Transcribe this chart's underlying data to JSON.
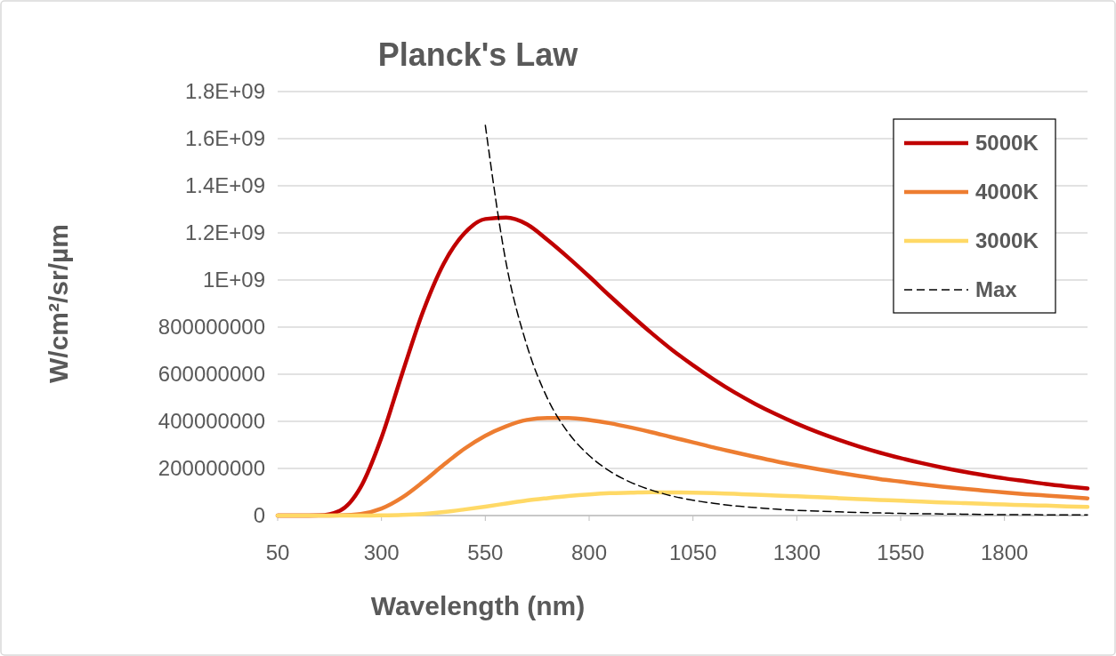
{
  "chart_data": {
    "type": "line",
    "title": "Planck's Law",
    "xlabel": "Wavelength (nm)",
    "ylabel": "W/cm²/sr/µm",
    "x": [
      50,
      100,
      150,
      200,
      250,
      300,
      350,
      400,
      450,
      500,
      550,
      600,
      650,
      700,
      750,
      800,
      850,
      900,
      950,
      1000,
      1050,
      1100,
      1150,
      1200,
      1250,
      1300,
      1350,
      1400,
      1450,
      1500,
      1550,
      1600,
      1650,
      1700,
      1750,
      1800,
      1850,
      1900,
      1950,
      2000
    ],
    "xlim": [
      50,
      2000
    ],
    "xticks": [
      50,
      300,
      550,
      800,
      1050,
      1300,
      1550,
      1800
    ],
    "ylim": [
      0,
      1800000000
    ],
    "yticks": [
      0,
      200000000,
      400000000,
      600000000,
      800000000,
      {
        "value": 1000000000,
        "label": "1E+09"
      },
      {
        "value": 1200000000,
        "label": "1.2E+09"
      },
      {
        "value": 1400000000,
        "label": "1.4E+09"
      },
      {
        "value": 1600000000,
        "label": "1.6E+09"
      },
      {
        "value": 1800000000,
        "label": "1.8E+09"
      }
    ],
    "grid": "y",
    "legend": "top right",
    "series": [
      {
        "name": "5000K",
        "color": "#c00000",
        "values": [
          0,
          0,
          1000000,
          21000000,
          121000000,
          331000000,
          604000000,
          866000000,
          1070000000,
          1199000000,
          1259000000,
          1265000000,
          1237000000,
          1170000000,
          1095000000,
          1015000000,
          932000000,
          852000000,
          775000000,
          703000000,
          638000000,
          578000000,
          523000000,
          474000000,
          430000000,
          390000000,
          354000000,
          322000000,
          293000000,
          267000000,
          244000000,
          223000000,
          204000000,
          187000000,
          172000000,
          158000000,
          146000000,
          134000000,
          124000000,
          115000000
        ]
      },
      {
        "name": "4000K",
        "color": "#ed7d31",
        "values": [
          0,
          0,
          0,
          1000000,
          7000000,
          30000000,
          77000000,
          143000000,
          216000000,
          284000000,
          339000000,
          379000000,
          406000000,
          414000000,
          414000000,
          406000000,
          392000000,
          374000000,
          354000000,
          332000000,
          311000000,
          289000000,
          269000000,
          249000000,
          230000000,
          213000000,
          197000000,
          182000000,
          168000000,
          155000000,
          144000000,
          133000000,
          123000000,
          114000000,
          106000000,
          98000000,
          91000000,
          85000000,
          79000000,
          73000000
        ]
      },
      {
        "name": "3000K",
        "color": "#ffd966",
        "values": [
          0,
          0,
          0,
          0,
          0,
          1000000,
          3000000,
          7000000,
          15000000,
          26000000,
          38000000,
          51000000,
          64000000,
          74000000,
          83000000,
          90000000,
          95000000,
          97000000,
          99000000,
          98000000,
          97000000,
          95000000,
          92000000,
          89000000,
          85000000,
          82000000,
          78000000,
          74000000,
          70000000,
          66000000,
          63000000,
          59000000,
          56000000,
          53000000,
          50000000,
          47000000,
          44000000,
          42000000,
          39000000,
          37000000
        ]
      },
      {
        "name": "Max",
        "color": "#000000",
        "line_style": "dashed",
        "values": [
          null,
          null,
          null,
          null,
          null,
          null,
          null,
          null,
          null,
          null,
          1657000000,
          1073000000,
          723000000,
          496000000,
          351000000,
          255000000,
          188000000,
          141000000,
          108000000,
          83000000,
          65000000,
          52000000,
          41000000,
          34000000,
          27000000,
          22000000,
          19000000,
          16000000,
          13000000,
          11000000,
          9000000,
          8000000,
          7000000,
          6000000,
          5000000,
          4000000,
          4000000,
          3000000,
          3000000,
          3000000
        ]
      }
    ]
  }
}
